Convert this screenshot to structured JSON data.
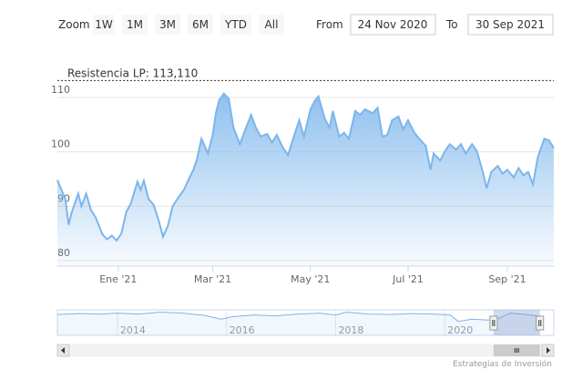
{
  "chart_data": {
    "type": "area",
    "range_selector": {
      "zoom_label": "Zoom",
      "buttons": [
        "1W",
        "1M",
        "3M",
        "6M",
        "YTD",
        "All"
      ],
      "from_label": "From",
      "from": "24 Nov 2020",
      "to_label": "To",
      "to": "30 Sep 2021"
    },
    "annotation": {
      "label": "Resistencia LP: 113,110",
      "value": 113.11
    },
    "color": "#7cb5ec",
    "x": [
      "2020-11-24",
      "2020-11-29",
      "2020-12-01",
      "2020-12-03",
      "2020-12-07",
      "2020-12-09",
      "2020-12-12",
      "2020-12-15",
      "2020-12-18",
      "2020-12-22",
      "2020-12-25",
      "2020-12-28",
      "2020-12-31",
      "2021-01-03",
      "2021-01-06",
      "2021-01-09",
      "2021-01-13",
      "2021-01-15",
      "2021-01-17",
      "2021-01-20",
      "2021-01-23",
      "2021-01-26",
      "2021-01-29",
      "2021-02-01",
      "2021-02-04",
      "2021-02-08",
      "2021-02-11",
      "2021-02-14",
      "2021-02-17",
      "2021-02-19",
      "2021-02-22",
      "2021-02-26",
      "2021-03-01",
      "2021-03-03",
      "2021-03-05",
      "2021-03-08",
      "2021-03-11",
      "2021-03-14",
      "2021-03-18",
      "2021-03-21",
      "2021-03-25",
      "2021-03-28",
      "2021-03-31",
      "2021-04-04",
      "2021-04-07",
      "2021-04-10",
      "2021-04-14",
      "2021-04-17",
      "2021-04-21",
      "2021-04-24",
      "2021-04-27",
      "2021-05-01",
      "2021-05-04",
      "2021-05-06",
      "2021-05-10",
      "2021-05-13",
      "2021-05-15",
      "2021-05-19",
      "2021-05-22",
      "2021-05-25",
      "2021-05-29",
      "2021-06-01",
      "2021-06-04",
      "2021-06-09",
      "2021-06-12",
      "2021-06-15",
      "2021-06-18",
      "2021-06-21",
      "2021-06-25",
      "2021-06-28",
      "2021-07-01",
      "2021-07-05",
      "2021-07-08",
      "2021-07-12",
      "2021-07-15",
      "2021-07-17",
      "2021-07-21",
      "2021-07-24",
      "2021-07-27",
      "2021-07-31",
      "2021-08-03",
      "2021-08-06",
      "2021-08-10",
      "2021-08-13",
      "2021-08-17",
      "2021-08-19",
      "2021-08-22",
      "2021-08-26",
      "2021-08-29",
      "2021-09-01",
      "2021-09-05",
      "2021-09-08",
      "2021-09-11",
      "2021-09-14",
      "2021-09-17",
      "2021-09-20",
      "2021-09-24",
      "2021-09-27",
      "2021-09-30"
    ],
    "values": [
      94.8,
      91.3,
      86.6,
      88.9,
      92.3,
      90,
      92.3,
      89.3,
      87.9,
      84.9,
      83.9,
      84.6,
      83.7,
      85,
      88.9,
      90.6,
      94.5,
      93,
      94.7,
      91.3,
      90.3,
      87.6,
      84.4,
      86.4,
      90,
      91.8,
      93,
      95,
      96.7,
      98.5,
      102.4,
      99.7,
      103.1,
      107.1,
      109.5,
      110.7,
      109.8,
      104.4,
      101.4,
      103.8,
      106.8,
      104.4,
      102.8,
      103.3,
      101.7,
      103.1,
      100.7,
      99.4,
      103.1,
      105.8,
      102.8,
      107.8,
      109.5,
      110.2,
      106.1,
      104.4,
      107.5,
      102.8,
      103.5,
      102.4,
      107.5,
      106.8,
      107.8,
      107.1,
      108.1,
      102.8,
      103.1,
      105.8,
      106.5,
      104.1,
      105.8,
      103.5,
      102.4,
      101.1,
      96.7,
      99.7,
      98.4,
      100.1,
      101.4,
      100.4,
      101.4,
      99.7,
      101.4,
      100.1,
      96,
      93.3,
      96.3,
      97.4,
      96,
      96.7,
      95.3,
      97,
      95.7,
      96.3,
      94,
      99,
      102.4,
      102.1,
      100.7
    ],
    "xlim": [
      "2020-11-24",
      "2021-09-30"
    ],
    "xticks": [
      {
        "value": "2021-01-01",
        "label": "Ene '21"
      },
      {
        "value": "2021-03-01",
        "label": "Mar '21"
      },
      {
        "value": "2021-05-01",
        "label": "May '21"
      },
      {
        "value": "2021-07-01",
        "label": "Jul '21"
      },
      {
        "value": "2021-09-01",
        "label": "Sep '21"
      }
    ],
    "ylim": [
      79,
      113.5
    ],
    "yticks": [
      80,
      90,
      100,
      110
    ],
    "grid": true,
    "navigator": {
      "x": [
        2012.9,
        2013.3,
        2013.7,
        2014.0,
        2014.4,
        2014.8,
        2015.2,
        2015.6,
        2015.9,
        2016.1,
        2016.5,
        2016.9,
        2017.3,
        2017.7,
        2018.0,
        2018.2,
        2018.6,
        2019.0,
        2019.4,
        2019.8,
        2020.1,
        2020.25,
        2020.5,
        2020.8,
        2021.0,
        2021.2,
        2021.5,
        2021.75
      ],
      "values": [
        105,
        107,
        106,
        108,
        106,
        110,
        108,
        103,
        95,
        100,
        104,
        102,
        106,
        108,
        104,
        110,
        106,
        105,
        107,
        106,
        104,
        90,
        95,
        93,
        97,
        108,
        105,
        101
      ],
      "xlim": [
        2012.9,
        2022.0
      ],
      "ylim": [
        60,
        115
      ],
      "xticks": [
        2014,
        2016,
        2018,
        2020
      ]
    },
    "credits": "Estrategias de Inversión"
  }
}
